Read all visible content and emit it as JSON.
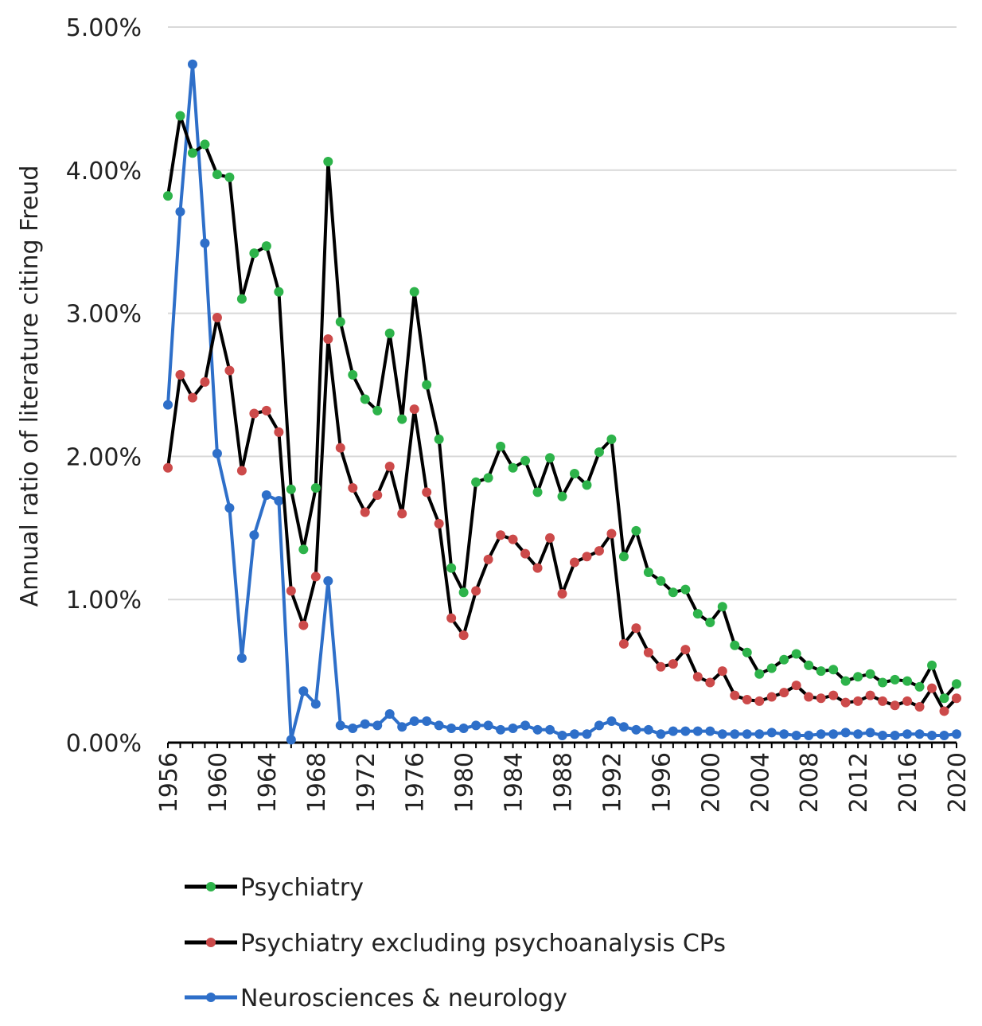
{
  "chart_data": {
    "type": "line",
    "title": "",
    "xlabel": "",
    "ylabel": "Annual ratio of literature citing Freud",
    "x": [
      1956,
      1957,
      1958,
      1959,
      1960,
      1961,
      1962,
      1963,
      1964,
      1965,
      1966,
      1967,
      1968,
      1969,
      1970,
      1971,
      1972,
      1973,
      1974,
      1975,
      1976,
      1977,
      1978,
      1979,
      1980,
      1981,
      1982,
      1983,
      1984,
      1985,
      1986,
      1987,
      1988,
      1989,
      1990,
      1991,
      1992,
      1993,
      1994,
      1995,
      1996,
      1997,
      1998,
      1999,
      2000,
      2001,
      2002,
      2003,
      2004,
      2005,
      2006,
      2007,
      2008,
      2009,
      2010,
      2011,
      2012,
      2013,
      2014,
      2015,
      2016,
      2017,
      2018,
      2019,
      2020
    ],
    "x_tick_labels": [
      "1956",
      "1960",
      "1964",
      "1968",
      "1972",
      "1976",
      "1980",
      "1984",
      "1988",
      "1992",
      "1996",
      "2000",
      "2004",
      "2008",
      "2012",
      "2016",
      "2020"
    ],
    "y_tick_labels": [
      "0.00%",
      "1.00%",
      "2.00%",
      "3.00%",
      "4.00%",
      "5.00%"
    ],
    "ylim": [
      0,
      5
    ],
    "y_unit": "%",
    "grid": "horizontal",
    "legend_position": "bottom-left",
    "series": [
      {
        "name": "Psychiatry",
        "line_color": "#000000",
        "marker_color": "#2db34a",
        "values": [
          3.82,
          4.38,
          4.12,
          4.18,
          3.97,
          3.95,
          3.1,
          3.42,
          3.47,
          3.15,
          1.77,
          1.35,
          1.78,
          4.06,
          2.94,
          2.57,
          2.4,
          2.32,
          2.86,
          2.26,
          3.15,
          2.5,
          2.12,
          1.22,
          1.05,
          1.82,
          1.85,
          2.07,
          1.92,
          1.97,
          1.75,
          1.99,
          1.72,
          1.88,
          1.8,
          2.03,
          2.12,
          1.3,
          1.48,
          1.19,
          1.13,
          1.05,
          1.07,
          0.9,
          0.84,
          0.95,
          0.68,
          0.63,
          0.48,
          0.52,
          0.58,
          0.62,
          0.54,
          0.5,
          0.51,
          0.43,
          0.46,
          0.48,
          0.42,
          0.44,
          0.43,
          0.39,
          0.54,
          0.31,
          0.41
        ]
      },
      {
        "name": "Psychiatry excluding psychoanalysis CPs",
        "line_color": "#000000",
        "marker_color": "#cc4a4a",
        "values": [
          1.92,
          2.57,
          2.41,
          2.52,
          2.97,
          2.6,
          1.9,
          2.3,
          2.32,
          2.17,
          1.06,
          0.82,
          1.16,
          2.82,
          2.06,
          1.78,
          1.61,
          1.73,
          1.93,
          1.6,
          2.33,
          1.75,
          1.53,
          0.87,
          0.75,
          1.06,
          1.28,
          1.45,
          1.42,
          1.32,
          1.22,
          1.43,
          1.04,
          1.26,
          1.3,
          1.34,
          1.46,
          0.69,
          0.8,
          0.63,
          0.53,
          0.55,
          0.65,
          0.46,
          0.42,
          0.5,
          0.33,
          0.3,
          0.29,
          0.32,
          0.35,
          0.4,
          0.32,
          0.31,
          0.33,
          0.28,
          0.29,
          0.33,
          0.29,
          0.26,
          0.29,
          0.25,
          0.38,
          0.22,
          0.31
        ]
      },
      {
        "name": "Neurosciences & neurology",
        "line_color": "#2e6fc9",
        "marker_color": "#2e6fc9",
        "values": [
          2.36,
          3.71,
          4.74,
          3.49,
          2.02,
          1.64,
          0.59,
          1.45,
          1.73,
          1.69,
          0.02,
          0.36,
          0.27,
          1.13,
          0.12,
          0.1,
          0.13,
          0.12,
          0.2,
          0.11,
          0.15,
          0.15,
          0.12,
          0.1,
          0.1,
          0.12,
          0.12,
          0.09,
          0.1,
          0.12,
          0.09,
          0.09,
          0.05,
          0.06,
          0.06,
          0.12,
          0.15,
          0.11,
          0.09,
          0.09,
          0.06,
          0.08,
          0.08,
          0.08,
          0.08,
          0.06,
          0.06,
          0.06,
          0.06,
          0.07,
          0.06,
          0.05,
          0.05,
          0.06,
          0.06,
          0.07,
          0.06,
          0.07,
          0.05,
          0.05,
          0.06,
          0.06,
          0.05,
          0.05,
          0.06
        ]
      }
    ]
  }
}
